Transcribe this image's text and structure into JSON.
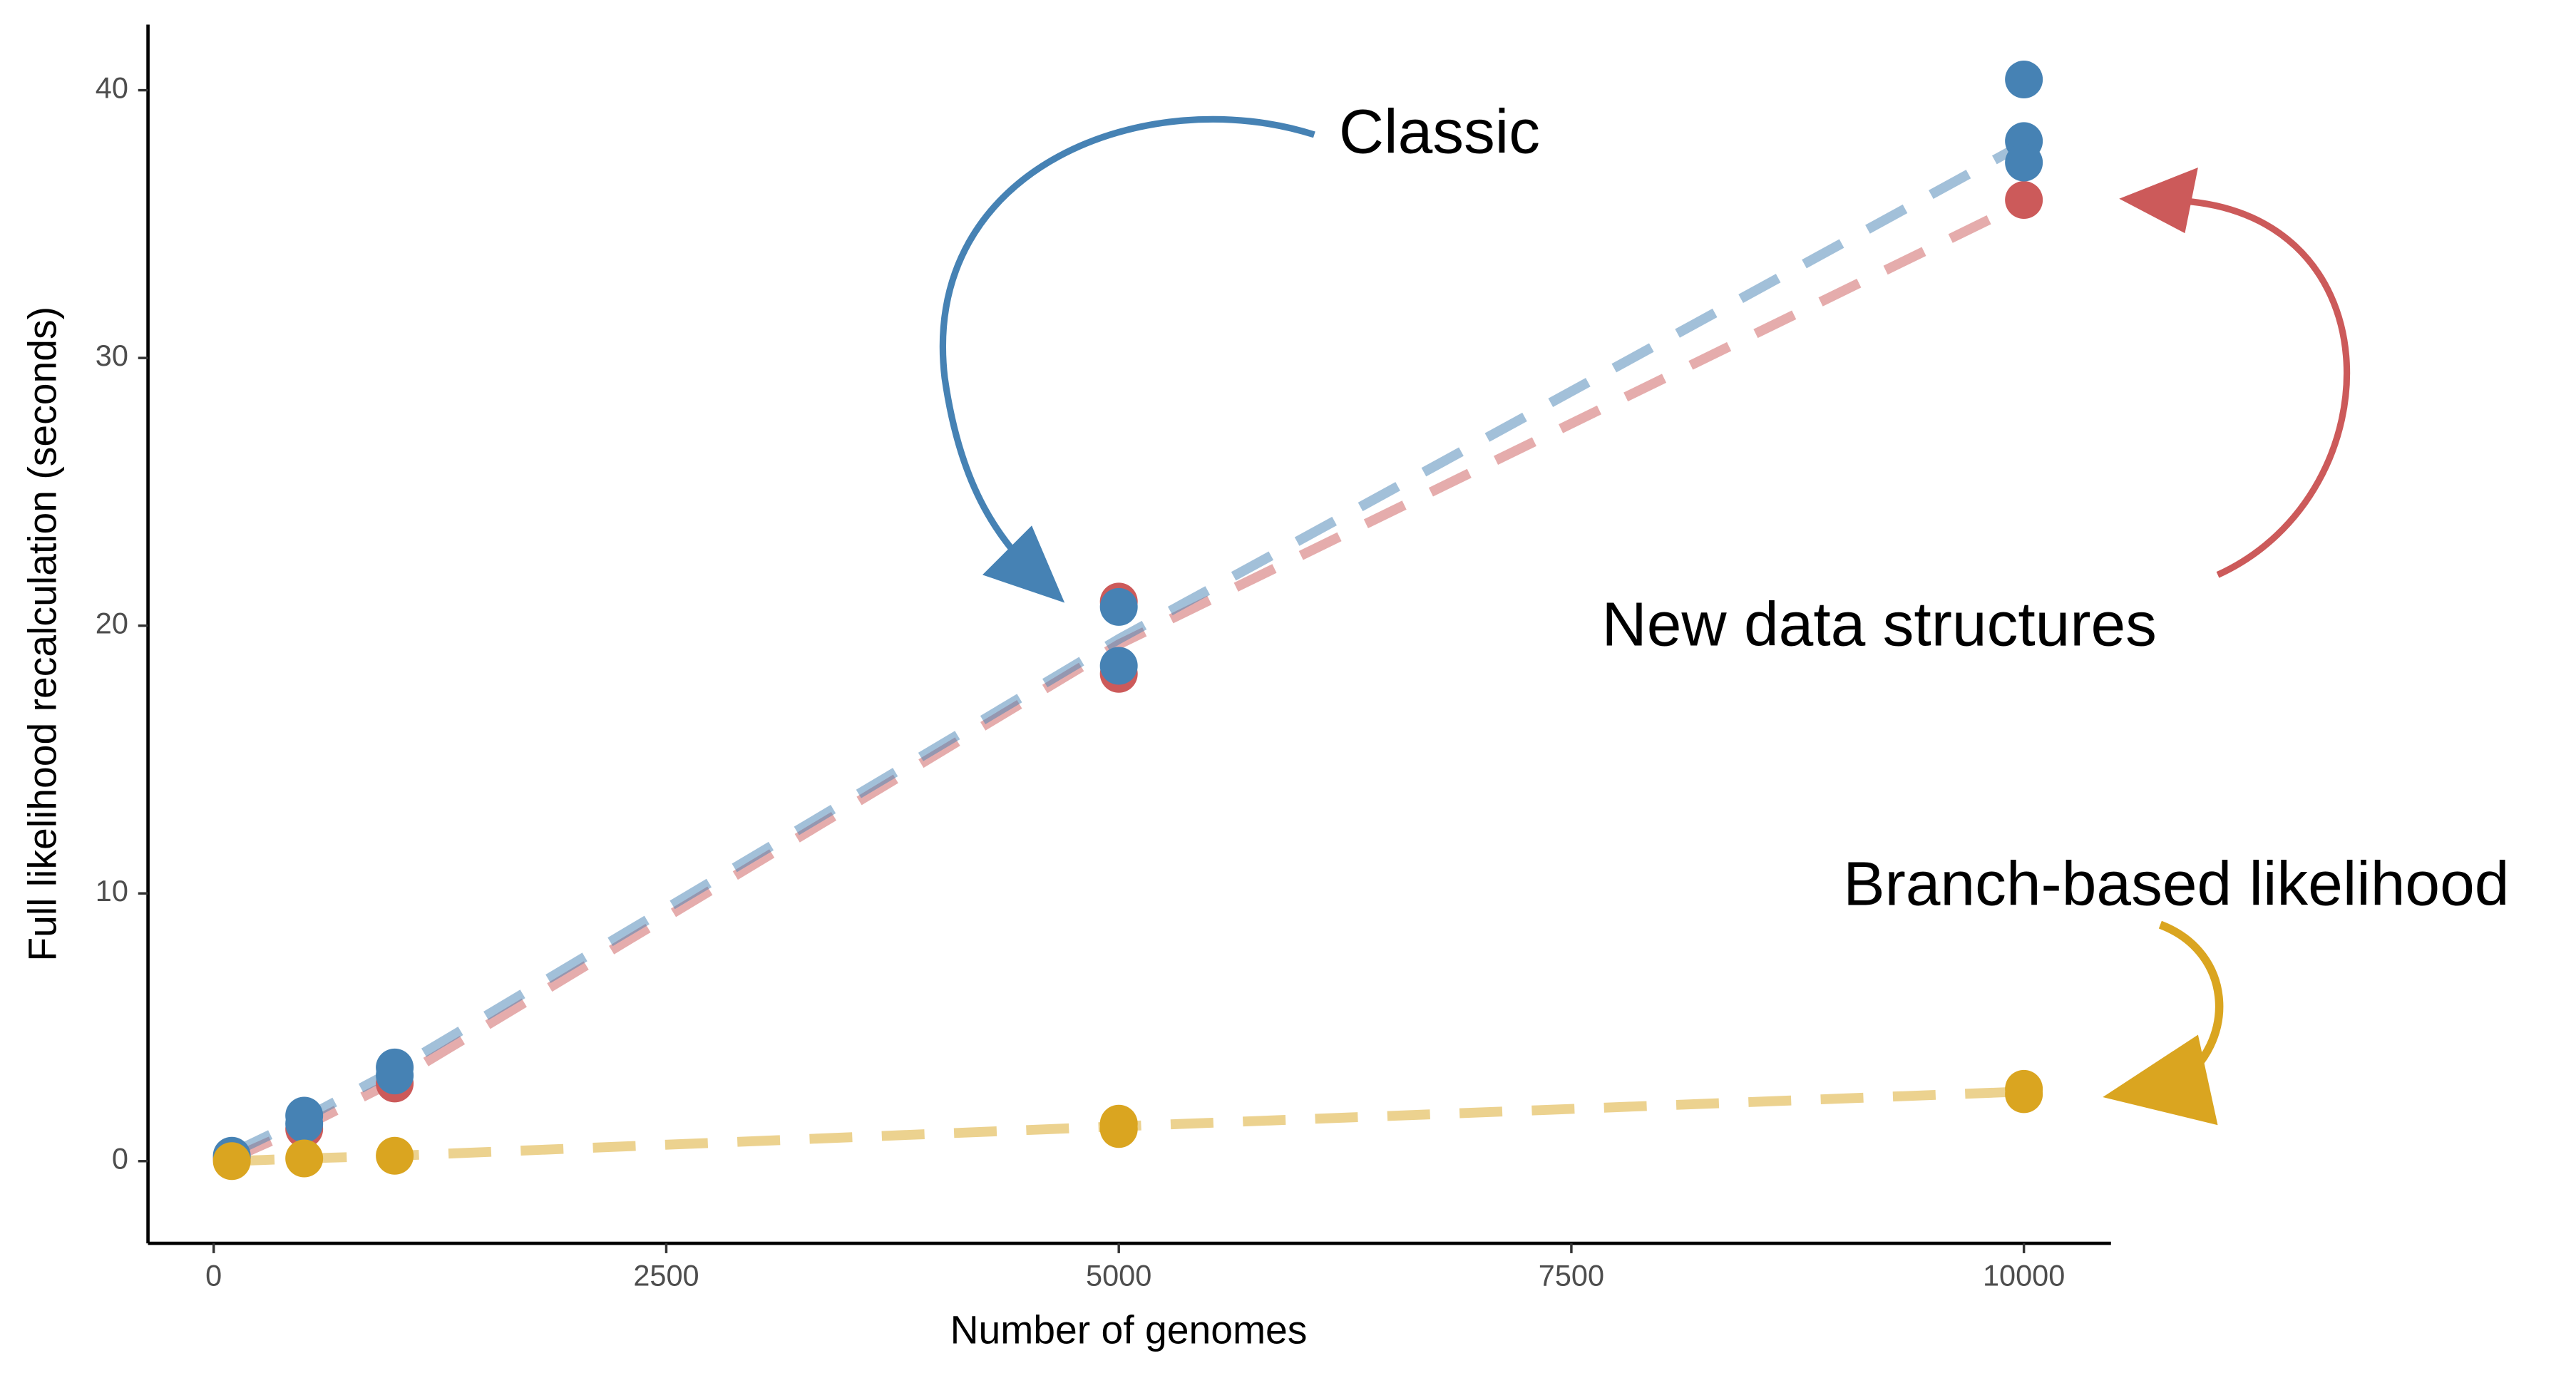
{
  "chart_data": {
    "type": "scatter",
    "xlabel": "Number of genomes",
    "ylabel": "Full likelihood recalculation (seconds)",
    "xlim": [
      -363,
      10481
    ],
    "xticks": [
      0,
      2500,
      5000,
      7500,
      10000
    ],
    "ylim": [
      -3.07,
      42.45
    ],
    "yticks": [
      0,
      10,
      20,
      30,
      40
    ],
    "grid": false,
    "series": [
      {
        "name": "New data structures",
        "color": "#cc5a5a",
        "x": [
          100,
          500,
          1000,
          5000,
          5000,
          10000
        ],
        "values": [
          0.1,
          1.2,
          2.9,
          20.9,
          18.2,
          35.9
        ],
        "trend_x": [
          100,
          500,
          1000,
          5000,
          10000
        ],
        "trend_values": [
          0.1,
          1.3,
          3.0,
          19.3,
          35.8
        ]
      },
      {
        "name": "Classic",
        "color": "#4682b4",
        "x": [
          100,
          500,
          500,
          1000,
          1000,
          5000,
          5000,
          10000,
          10000,
          10000
        ],
        "values": [
          0.2,
          1.7,
          1.4,
          3.5,
          3.2,
          20.7,
          18.5,
          40.4,
          38.1,
          37.3
        ],
        "trend_x": [
          100,
          500,
          1000,
          5000,
          10000
        ],
        "trend_values": [
          0.3,
          1.6,
          3.4,
          19.5,
          38.0
        ]
      },
      {
        "name": "Branch-based likelihood",
        "color": "#daa520",
        "x": [
          100,
          500,
          1000,
          5000,
          5000,
          10000,
          10000
        ],
        "values": [
          0.0,
          0.1,
          0.2,
          1.4,
          1.2,
          2.7,
          2.5
        ],
        "trend_x": [
          100,
          500,
          1000,
          5000,
          10000
        ],
        "trend_values": [
          0.0,
          0.1,
          0.2,
          1.3,
          2.6
        ]
      }
    ]
  }
}
